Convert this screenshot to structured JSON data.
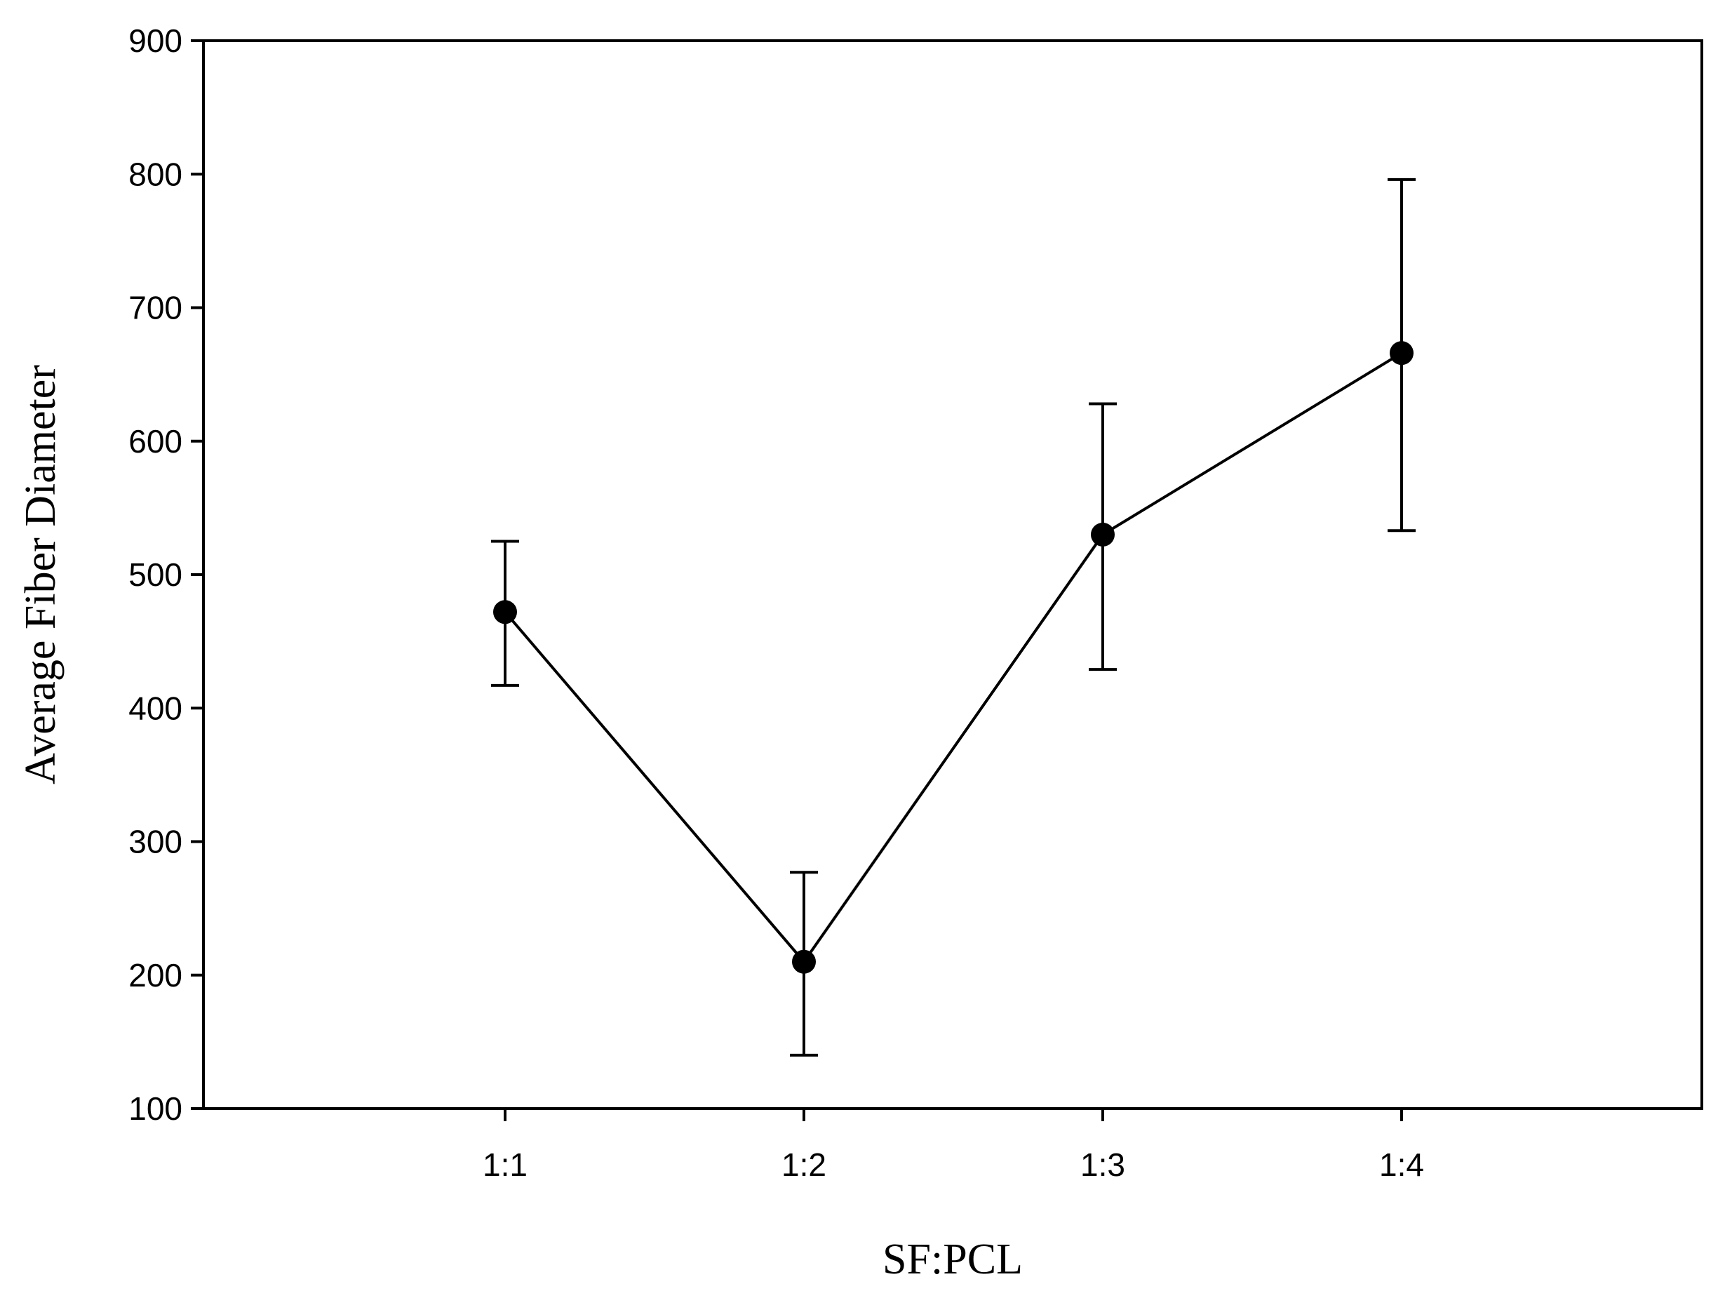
{
  "chart_data": {
    "type": "line",
    "title": "",
    "xlabel": "SF:PCL",
    "ylabel": "Average Fiber Diameter",
    "categories": [
      "1:1",
      "1:2",
      "1:3",
      "1:4"
    ],
    "series": [
      {
        "values": [
          472,
          210,
          530,
          666
        ],
        "error_low": [
          417,
          140,
          429,
          533
        ],
        "error_high": [
          525,
          277,
          628,
          796
        ]
      }
    ],
    "ylim": [
      100,
      900
    ],
    "yticks": [
      100,
      200,
      300,
      400,
      500,
      600,
      700,
      800,
      900
    ],
    "grid": false,
    "legend": "none",
    "colors": {
      "line": "#000000",
      "marker": "#000000",
      "background": "#ffffff"
    }
  }
}
